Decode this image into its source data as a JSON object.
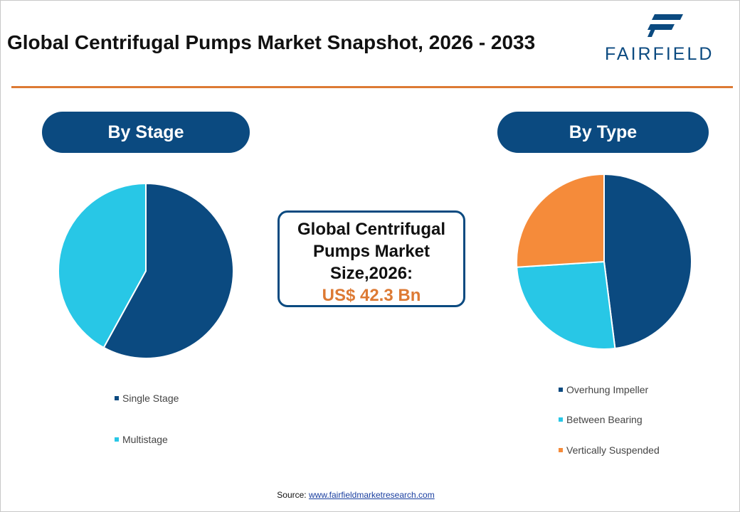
{
  "header": {
    "title": "Global Centrifugal Pumps Market Snapshot, 2026 - 2033",
    "logo_text": "FAIRFIELD"
  },
  "colors": {
    "navy": "#0b4a80",
    "cyan": "#28c7e6",
    "orange": "#f58b3a",
    "accent": "#dd7a34"
  },
  "center_box": {
    "line1": "Global Centrifugal",
    "line2": "Pumps Market",
    "line3": "Size,2026:",
    "value": "US$ 42.3 Bn"
  },
  "chart_data": [
    {
      "type": "pie",
      "title": "By Stage",
      "categories": [
        "Single Stage",
        "Multistage"
      ],
      "values": [
        58,
        42
      ],
      "colors": [
        "#0b4a80",
        "#28c7e6"
      ],
      "legend": "bottom"
    },
    {
      "type": "pie",
      "title": "By Type",
      "categories": [
        "Overhung Impeller",
        "Between Bearing",
        "Vertically Suspended"
      ],
      "values": [
        48,
        26,
        26
      ],
      "colors": [
        "#0b4a80",
        "#28c7e6",
        "#f58b3a"
      ],
      "legend": "bottom"
    }
  ],
  "footer": {
    "source_label": "Source: ",
    "source_link": "www.fairfieldmarketresearch.com"
  }
}
